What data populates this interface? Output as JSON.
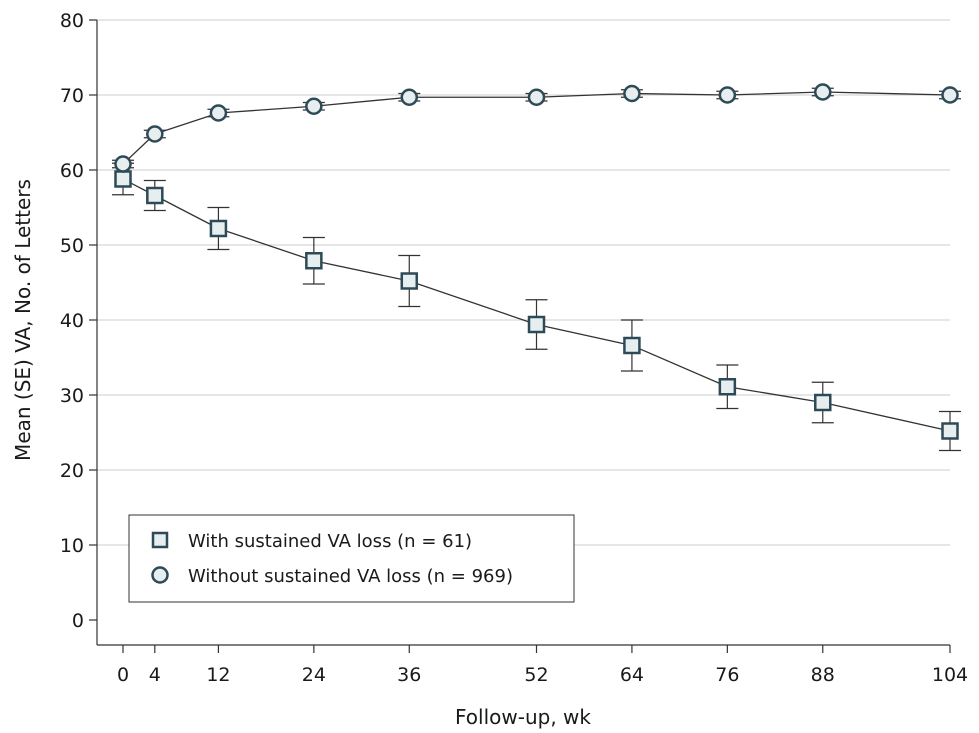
{
  "chart_data": {
    "type": "line",
    "title": "",
    "xlabel": "Follow-up, wk",
    "ylabel": "Mean (SE) VA, No. of Letters",
    "x": [
      0,
      4,
      12,
      24,
      36,
      52,
      64,
      76,
      88,
      104
    ],
    "x_ticks": [
      "0",
      "4",
      "12",
      "24",
      "36",
      "52",
      "64",
      "76",
      "88",
      "104"
    ],
    "y_ticks": [
      "0",
      "10",
      "20",
      "30",
      "40",
      "50",
      "60",
      "70",
      "80"
    ],
    "ylim": [
      0,
      80
    ],
    "xlim": [
      0,
      104
    ],
    "grid": "horizontal",
    "legend_position": "bottom-left",
    "series": [
      {
        "name": "With sustained VA loss (n = 61)",
        "marker": "square",
        "color": "#2e4a57",
        "values": [
          58.8,
          56.6,
          52.2,
          47.9,
          45.2,
          39.4,
          36.6,
          31.1,
          29.0,
          25.2
        ],
        "se": [
          2.1,
          2.0,
          2.8,
          3.1,
          3.4,
          3.3,
          3.4,
          2.9,
          2.7,
          2.6
        ]
      },
      {
        "name": "Without sustained VA loss (n = 969)",
        "marker": "circle",
        "color": "#2e4a57",
        "values": [
          60.8,
          64.8,
          67.6,
          68.5,
          69.7,
          69.7,
          70.2,
          70.0,
          70.4,
          70.0
        ],
        "se": [
          0.5,
          0.5,
          0.5,
          0.5,
          0.5,
          0.5,
          0.5,
          0.5,
          0.5,
          0.5
        ]
      }
    ],
    "colors": {
      "marker_fill": "#e6eef0",
      "line": "#333333",
      "grid": "#d6d6d6",
      "axis": "#333333"
    }
  }
}
